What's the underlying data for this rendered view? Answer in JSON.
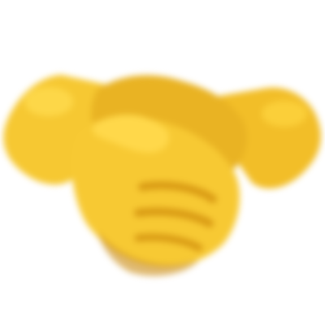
{
  "image": {
    "icon": "handshake-icon",
    "background_color": "#ffffff",
    "colors": {
      "skin_base": "#F6C832",
      "skin_light": "#FFDB4D",
      "skin_shadow": "#E0A418",
      "skin_deep_shadow": "#C98A10"
    }
  }
}
